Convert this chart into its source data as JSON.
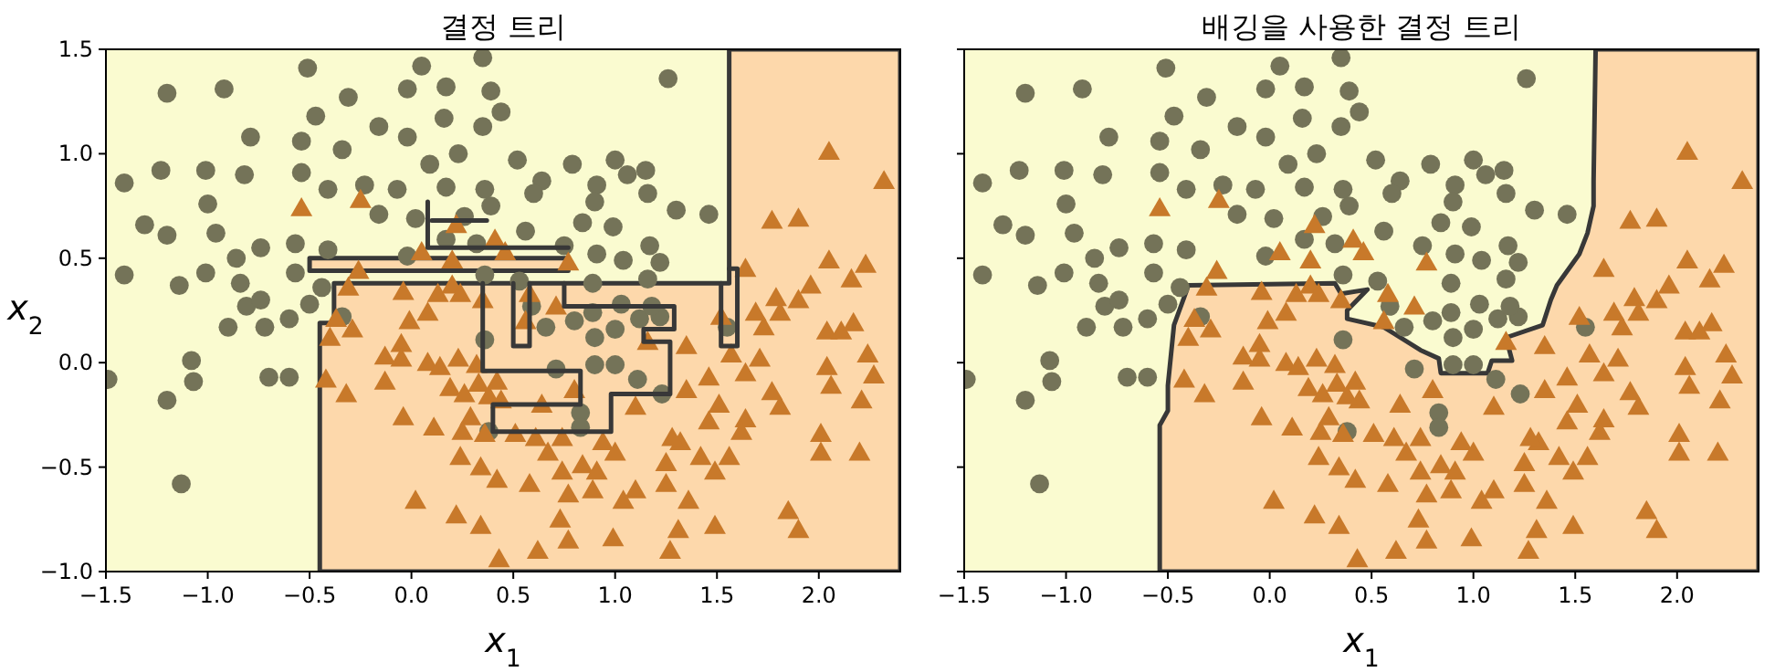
{
  "chart_data": [
    {
      "type": "scatter",
      "title": "결정 트리",
      "xlabel": "*x*$_{1}$",
      "ylabel": "*x*$_{2}$",
      "xlim": [
        -1.5,
        2.4
      ],
      "ylim": [
        -1.0,
        1.5
      ],
      "xticks": [
        {
          "value": -1.5,
          "label": "−1.5"
        },
        {
          "value": -1.0,
          "label": "−1.0"
        },
        {
          "value": -0.5,
          "label": "−0.5"
        },
        {
          "value": 0.0,
          "label": "0.0"
        },
        {
          "value": 0.5,
          "label": "0.5"
        },
        {
          "value": 1.0,
          "label": "1.0"
        },
        {
          "value": 1.5,
          "label": "1.5"
        },
        {
          "value": 2.0,
          "label": "2.0"
        }
      ],
      "yticks": [
        {
          "value": -1.0,
          "label": "−1.0"
        },
        {
          "value": -0.5,
          "label": "−0.5"
        },
        {
          "value": 0.0,
          "label": "0.0"
        },
        {
          "value": 0.5,
          "label": "0.5"
        },
        {
          "value": 1.0,
          "label": "1.0"
        },
        {
          "value": 1.5,
          "label": "1.5"
        }
      ],
      "series": [
        {
          "type": "area",
          "color": "#fdd8ab",
          "x": [
            -0.45,
            -0.45,
            -0.38,
            -0.38,
            1.56,
            1.56,
            2.4,
            2.4
          ],
          "values": [
            -1.0,
            0.19,
            0.19,
            0.38,
            0.38,
            1.5,
            1.5,
            -1.0
          ]
        },
        {
          "type": "area",
          "color": "#fdd8ab",
          "x": [
            -0.5,
            0.77,
            0.77,
            -0.5
          ],
          "values": [
            0.5,
            0.5,
            0.44,
            0.44
          ]
        },
        {
          "type": "line",
          "color": "#383838",
          "x": [
            0.35,
            0.35,
            0.83,
            0.83,
            0.4,
            0.4,
            0.98,
            0.98,
            1.27,
            1.27,
            1.14,
            1.14,
            1.29,
            1.29,
            0.75,
            0.75,
            null,
            0.5,
            0.5,
            0.58,
            0.58,
            null,
            0.08,
            0.08,
            0.77,
            null,
            0.1,
            0.37,
            null,
            1.52,
            1.52,
            1.6,
            1.6,
            1.56
          ],
          "values": [
            0.38,
            -0.04,
            -0.04,
            -0.2,
            -0.2,
            -0.33,
            -0.33,
            -0.15,
            -0.15,
            0.1,
            0.1,
            0.16,
            0.16,
            0.27,
            0.27,
            0.38,
            null,
            0.38,
            0.08,
            0.08,
            0.38,
            null,
            0.77,
            0.55,
            0.55,
            null,
            0.68,
            0.68,
            null,
            0.38,
            0.08,
            0.08,
            0.45,
            0.45
          ]
        },
        {
          "marker": "circle",
          "color": "#747358",
          "x": [
            -0.51,
            -1.2,
            -0.92,
            -0.31,
            0.05,
            0.35,
            -0.02,
            0.17,
            0.39,
            1.26,
            -0.47,
            -0.16,
            -0.02,
            0.16,
            0.44,
            -0.79,
            -0.54,
            -0.34,
            0.23,
            0.35,
            -1.41,
            -1.23,
            -1.01,
            -0.82,
            -0.54,
            -0.41,
            -0.23,
            -0.07,
            0.09,
            0.17,
            0.36,
            0.52,
            0.64,
            0.79,
            1.0,
            1.06,
            1.15,
            0.91,
            1.16,
            0.6,
            0.39,
            0.26,
            0.02,
            -0.16,
            -1.0,
            -1.31,
            -1.2,
            -0.96,
            -0.74,
            -0.57,
            -0.86,
            -1.01,
            -1.41,
            -1.14,
            -0.84,
            -0.57,
            -0.41,
            -0.81,
            -0.74,
            -0.9,
            -0.72,
            -0.6,
            -0.5,
            -0.44,
            -1.08,
            -1.49,
            -1.07,
            -1.2,
            -0.7,
            -0.6,
            -1.13,
            -0.34,
            -0.02,
            0.17,
            0.32,
            0.56,
            0.75,
            0.84,
            0.9,
            0.99,
            1.3,
            1.46,
            0.91,
            1.04,
            1.17,
            1.22,
            0.36,
            0.53,
            0.89,
            1.16,
            0.59,
            0.66,
            0.8,
            0.89,
            1.03,
            1.12,
            1.22,
            1.18,
            1.0,
            0.9,
            0.36,
            0.71,
            0.9,
            1.0,
            1.11,
            1.23,
            0.83,
            0.83,
            0.38,
            1.55
          ],
          "values": [
            1.41,
            1.29,
            1.31,
            1.27,
            1.42,
            1.46,
            1.31,
            1.32,
            1.3,
            1.36,
            1.18,
            1.13,
            1.08,
            1.17,
            1.2,
            1.08,
            1.06,
            1.02,
            1.0,
            1.13,
            0.86,
            0.92,
            0.92,
            0.9,
            0.91,
            0.83,
            0.85,
            0.83,
            0.95,
            0.84,
            0.83,
            0.97,
            0.87,
            0.95,
            0.97,
            0.9,
            0.92,
            0.85,
            0.81,
            0.81,
            0.75,
            0.7,
            0.69,
            0.71,
            0.76,
            0.66,
            0.61,
            0.62,
            0.55,
            0.57,
            0.5,
            0.43,
            0.42,
            0.37,
            0.38,
            0.43,
            0.54,
            0.27,
            0.3,
            0.17,
            0.17,
            0.21,
            0.28,
            0.36,
            0.01,
            -0.08,
            -0.09,
            -0.18,
            -0.07,
            -0.07,
            -0.58,
            0.22,
            0.51,
            0.59,
            0.57,
            0.63,
            0.56,
            0.67,
            0.77,
            0.65,
            0.73,
            0.71,
            0.52,
            0.49,
            0.56,
            0.48,
            0.42,
            0.39,
            0.38,
            0.4,
            0.27,
            0.17,
            0.2,
            0.24,
            0.28,
            0.21,
            0.22,
            0.27,
            0.16,
            0.12,
            0.11,
            -0.03,
            -0.01,
            -0.01,
            -0.08,
            -0.15,
            -0.24,
            -0.31,
            -0.33,
            0.17
          ]
        },
        {
          "marker": "triangle",
          "color": "#c8792a",
          "x": [
            -0.54,
            -0.25,
            0.22,
            0.05,
            0.2,
            0.41,
            0.46,
            0.77,
            -0.26,
            -0.31,
            -0.04,
            0.13,
            0.2,
            0.24,
            0.35,
            0.58,
            0.71,
            0.56,
            -0.37,
            -0.4,
            -0.29,
            -0.01,
            0.08,
            -0.05,
            -0.13,
            -0.05,
            0.08,
            0.14,
            0.23,
            0.32,
            -0.42,
            -0.32,
            -0.13,
            0.19,
            0.26,
            0.33,
            0.42,
            0.44,
            0.38,
            0.8,
            0.64,
            -0.04,
            0.11,
            0.29,
            0.25,
            0.36,
            0.51,
            0.61,
            0.74,
            0.94,
            0.24,
            0.34,
            0.42,
            0.58,
            0.67,
            0.74,
            0.84,
            0.91,
            1.0,
            0.77,
            0.89,
            1.04,
            1.1,
            1.25,
            1.36,
            1.25,
            1.32,
            1.42,
            1.49,
            1.56,
            0.02,
            0.22,
            0.34,
            0.43,
            0.62,
            0.77,
            0.73,
            0.99,
            1.27,
            1.31,
            1.49,
            1.85,
            1.9,
            2.01,
            2.01,
            2.2,
            1.64,
            1.62,
            1.51,
            1.46,
            1.81,
            1.77,
            2.21,
            1.46,
            1.64,
            1.57,
            1.35,
            1.28,
            1.1,
            1.35,
            1.71,
            2.04,
            2.06,
            2.27,
            2.24,
            2.04,
            2.11,
            2.17,
            1.73,
            1.69,
            1.52,
            1.79,
            1.81,
            1.9,
            1.96,
            2.16,
            2.05,
            2.23,
            1.64,
            1.77,
            1.9,
            2.05,
            2.32,
            1.16
          ],
          "values": [
            0.74,
            0.78,
            0.66,
            0.53,
            0.49,
            0.59,
            0.53,
            0.48,
            0.44,
            0.36,
            0.34,
            0.33,
            0.37,
            0.33,
            0.3,
            0.33,
            0.27,
            0.2,
            0.21,
            0.12,
            0.16,
            0.2,
            0.24,
            0.09,
            0.03,
            0.02,
            0.0,
            -0.02,
            0.02,
            -0.01,
            -0.08,
            -0.15,
            -0.09,
            -0.12,
            -0.15,
            -0.1,
            -0.09,
            -0.18,
            -0.16,
            -0.13,
            -0.2,
            -0.26,
            -0.31,
            -0.26,
            -0.33,
            -0.34,
            -0.34,
            -0.36,
            -0.36,
            -0.38,
            -0.45,
            -0.5,
            -0.56,
            -0.58,
            -0.43,
            -0.52,
            -0.49,
            -0.52,
            -0.43,
            -0.63,
            -0.61,
            -0.66,
            -0.61,
            -0.58,
            -0.66,
            -0.48,
            -0.38,
            -0.45,
            -0.52,
            -0.45,
            -0.66,
            -0.73,
            -0.78,
            -0.94,
            -0.9,
            -0.85,
            -0.75,
            -0.84,
            -0.9,
            -0.8,
            -0.78,
            -0.71,
            -0.8,
            -0.34,
            -0.43,
            -0.43,
            -0.27,
            -0.33,
            -0.2,
            -0.28,
            -0.21,
            -0.14,
            -0.18,
            -0.07,
            -0.05,
            0.04,
            -0.13,
            -0.36,
            -0.21,
            0.08,
            0.02,
            -0.02,
            -0.11,
            -0.06,
            0.04,
            0.15,
            0.15,
            0.19,
            0.17,
            0.24,
            0.22,
            0.31,
            0.24,
            0.3,
            0.37,
            0.4,
            0.49,
            0.47,
            0.45,
            0.68,
            0.69,
            1.01,
            0.87,
            0.1
          ]
        }
      ]
    },
    {
      "type": "scatter",
      "title": "배깅을 사용한 결정 트리",
      "xlabel": "*x*$_{1}$",
      "tick_labels": "x",
      "xlim": [
        -1.5,
        2.4
      ],
      "ylim": [
        -1.0,
        1.5
      ],
      "xticks": [
        {
          "value": -1.5,
          "label": "−1.5"
        },
        {
          "value": -1.0,
          "label": "−1.0"
        },
        {
          "value": -0.5,
          "label": "−0.5"
        },
        {
          "value": 0.0,
          "label": "0.0"
        },
        {
          "value": 0.5,
          "label": "0.5"
        },
        {
          "value": 1.0,
          "label": "1.0"
        },
        {
          "value": 1.5,
          "label": "1.5"
        },
        {
          "value": 2.0,
          "label": "2.0"
        }
      ],
      "yticks": [
        {
          "value": -1.0,
          "label": null
        },
        {
          "value": -0.5,
          "label": null
        },
        {
          "value": 0.0,
          "label": null
        },
        {
          "value": 0.5,
          "label": null
        },
        {
          "value": 1.0,
          "label": null
        },
        {
          "value": 1.5,
          "label": null
        }
      ],
      "series": [
        {
          "type": "area",
          "color": "#fdd8ab",
          "x": [
            -0.54,
            -0.54,
            -0.5,
            -0.5,
            -0.47,
            -0.41,
            -0.4,
            0.32,
            0.35,
            0.48,
            0.38,
            0.38,
            0.56,
            0.74,
            0.83,
            0.84,
            1.07,
            1.09,
            1.19,
            1.16,
            1.34,
            1.38,
            1.41,
            1.52,
            1.56,
            1.59,
            1.59,
            1.6,
            2.4,
            2.4
          ],
          "values": [
            -1.0,
            -0.3,
            -0.23,
            -0.11,
            0.18,
            0.34,
            0.37,
            0.38,
            0.33,
            0.35,
            0.25,
            0.21,
            0.17,
            0.06,
            0.02,
            -0.05,
            -0.05,
            0.01,
            0.01,
            0.12,
            0.18,
            0.3,
            0.37,
            0.52,
            0.62,
            0.75,
            0.87,
            1.5,
            1.5,
            -1.0
          ]
        },
        {
          "marker": "circle",
          "color": "#747358",
          "x": [
            -0.51,
            -1.2,
            -0.92,
            -0.31,
            0.05,
            0.35,
            -0.02,
            0.17,
            0.39,
            1.26,
            -0.47,
            -0.16,
            -0.02,
            0.16,
            0.44,
            -0.79,
            -0.54,
            -0.34,
            0.23,
            0.35,
            -1.41,
            -1.23,
            -1.01,
            -0.82,
            -0.54,
            -0.41,
            -0.23,
            -0.07,
            0.09,
            0.17,
            0.36,
            0.52,
            0.64,
            0.79,
            1.0,
            1.06,
            1.15,
            0.91,
            1.16,
            0.6,
            0.39,
            0.26,
            0.02,
            -0.16,
            -1.0,
            -1.31,
            -1.2,
            -0.96,
            -0.74,
            -0.57,
            -0.86,
            -1.01,
            -1.41,
            -1.14,
            -0.84,
            -0.57,
            -0.41,
            -0.81,
            -0.74,
            -0.9,
            -0.72,
            -0.6,
            -0.5,
            -0.44,
            -1.08,
            -1.49,
            -1.07,
            -1.2,
            -0.7,
            -0.6,
            -1.13,
            -0.34,
            -0.02,
            0.17,
            0.32,
            0.56,
            0.75,
            0.84,
            0.9,
            0.99,
            1.3,
            1.46,
            0.91,
            1.04,
            1.17,
            1.22,
            0.36,
            0.53,
            0.89,
            1.16,
            0.59,
            0.66,
            0.8,
            0.89,
            1.03,
            1.12,
            1.22,
            1.18,
            1.0,
            0.9,
            0.36,
            0.71,
            0.9,
            1.0,
            1.11,
            1.23,
            0.83,
            0.83,
            0.38,
            1.55
          ],
          "values": [
            1.41,
            1.29,
            1.31,
            1.27,
            1.42,
            1.46,
            1.31,
            1.32,
            1.3,
            1.36,
            1.18,
            1.13,
            1.08,
            1.17,
            1.2,
            1.08,
            1.06,
            1.02,
            1.0,
            1.13,
            0.86,
            0.92,
            0.92,
            0.9,
            0.91,
            0.83,
            0.85,
            0.83,
            0.95,
            0.84,
            0.83,
            0.97,
            0.87,
            0.95,
            0.97,
            0.9,
            0.92,
            0.85,
            0.81,
            0.81,
            0.75,
            0.7,
            0.69,
            0.71,
            0.76,
            0.66,
            0.61,
            0.62,
            0.55,
            0.57,
            0.5,
            0.43,
            0.42,
            0.37,
            0.38,
            0.43,
            0.54,
            0.27,
            0.3,
            0.17,
            0.17,
            0.21,
            0.28,
            0.36,
            0.01,
            -0.08,
            -0.09,
            -0.18,
            -0.07,
            -0.07,
            -0.58,
            0.22,
            0.51,
            0.59,
            0.57,
            0.63,
            0.56,
            0.67,
            0.77,
            0.65,
            0.73,
            0.71,
            0.52,
            0.49,
            0.56,
            0.48,
            0.42,
            0.39,
            0.38,
            0.4,
            0.27,
            0.17,
            0.2,
            0.24,
            0.28,
            0.21,
            0.22,
            0.27,
            0.16,
            0.12,
            0.11,
            -0.03,
            -0.01,
            -0.01,
            -0.08,
            -0.15,
            -0.24,
            -0.31,
            -0.33,
            0.17
          ]
        },
        {
          "marker": "triangle",
          "color": "#c8792a",
          "x": [
            -0.54,
            -0.25,
            0.22,
            0.05,
            0.2,
            0.41,
            0.46,
            0.77,
            -0.26,
            -0.31,
            -0.04,
            0.13,
            0.2,
            0.24,
            0.35,
            0.58,
            0.71,
            0.56,
            -0.37,
            -0.4,
            -0.29,
            -0.01,
            0.08,
            -0.05,
            -0.13,
            -0.05,
            0.08,
            0.14,
            0.23,
            0.32,
            -0.42,
            -0.32,
            -0.13,
            0.19,
            0.26,
            0.33,
            0.42,
            0.44,
            0.38,
            0.8,
            0.64,
            -0.04,
            0.11,
            0.29,
            0.25,
            0.36,
            0.51,
            0.61,
            0.74,
            0.94,
            0.24,
            0.34,
            0.42,
            0.58,
            0.67,
            0.74,
            0.84,
            0.91,
            1.0,
            0.77,
            0.89,
            1.04,
            1.1,
            1.25,
            1.36,
            1.25,
            1.32,
            1.42,
            1.49,
            1.56,
            0.02,
            0.22,
            0.34,
            0.43,
            0.62,
            0.77,
            0.73,
            0.99,
            1.27,
            1.31,
            1.49,
            1.85,
            1.9,
            2.01,
            2.01,
            2.2,
            1.64,
            1.62,
            1.51,
            1.46,
            1.81,
            1.77,
            2.21,
            1.46,
            1.64,
            1.57,
            1.35,
            1.28,
            1.1,
            1.35,
            1.71,
            2.04,
            2.06,
            2.27,
            2.24,
            2.04,
            2.11,
            2.17,
            1.73,
            1.69,
            1.52,
            1.79,
            1.81,
            1.9,
            1.96,
            2.16,
            2.05,
            2.23,
            1.64,
            1.77,
            1.9,
            2.05,
            2.32,
            1.16
          ],
          "values": [
            0.74,
            0.78,
            0.66,
            0.53,
            0.49,
            0.59,
            0.53,
            0.48,
            0.44,
            0.36,
            0.34,
            0.33,
            0.37,
            0.33,
            0.3,
            0.33,
            0.27,
            0.2,
            0.21,
            0.12,
            0.16,
            0.2,
            0.24,
            0.09,
            0.03,
            0.02,
            0.0,
            -0.02,
            0.02,
            -0.01,
            -0.08,
            -0.15,
            -0.09,
            -0.12,
            -0.15,
            -0.1,
            -0.09,
            -0.18,
            -0.16,
            -0.13,
            -0.2,
            -0.26,
            -0.31,
            -0.26,
            -0.33,
            -0.34,
            -0.34,
            -0.36,
            -0.36,
            -0.38,
            -0.45,
            -0.5,
            -0.56,
            -0.58,
            -0.43,
            -0.52,
            -0.49,
            -0.52,
            -0.43,
            -0.63,
            -0.61,
            -0.66,
            -0.61,
            -0.58,
            -0.66,
            -0.48,
            -0.38,
            -0.45,
            -0.52,
            -0.45,
            -0.66,
            -0.73,
            -0.78,
            -0.94,
            -0.9,
            -0.85,
            -0.75,
            -0.84,
            -0.9,
            -0.8,
            -0.78,
            -0.71,
            -0.8,
            -0.34,
            -0.43,
            -0.43,
            -0.27,
            -0.33,
            -0.2,
            -0.28,
            -0.21,
            -0.14,
            -0.18,
            -0.07,
            -0.05,
            0.04,
            -0.13,
            -0.36,
            -0.21,
            0.08,
            0.02,
            -0.02,
            -0.11,
            -0.06,
            0.04,
            0.15,
            0.15,
            0.19,
            0.17,
            0.24,
            0.22,
            0.31,
            0.24,
            0.3,
            0.37,
            0.4,
            0.49,
            0.47,
            0.45,
            0.68,
            0.69,
            1.01,
            0.87,
            0.1
          ]
        }
      ]
    }
  ]
}
